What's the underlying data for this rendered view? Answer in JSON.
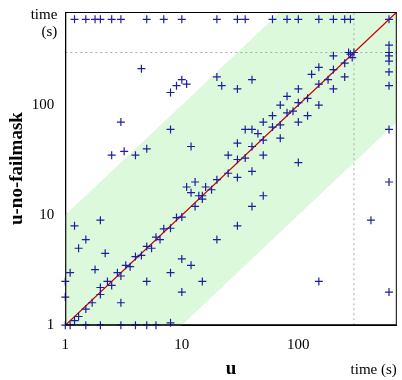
{
  "chart_data": {
    "type": "scatter",
    "x_label": "u",
    "y_label": "u-no-failmask",
    "annotations": [
      {
        "axis": "x",
        "text": "time (s)"
      },
      {
        "axis": "y",
        "text": "time (s)"
      }
    ],
    "log": true,
    "grid": false,
    "marker": "cross",
    "color": "#1f1f9e",
    "diagonal_color": "#cc0000",
    "band_color": "#dcf9dc",
    "band_factor": 10,
    "timeout": 300,
    "xlim": [
      1,
      700
    ],
    "ylim": [
      1,
      700
    ],
    "xticks": [
      1,
      10,
      100
    ],
    "yticks": [
      1,
      10,
      100
    ],
    "x": [
      1,
      1.1,
      1.2,
      1.3,
      1.5,
      1.7,
      2,
      2,
      2.3,
      2.5,
      2.8,
      3,
      3.3,
      3.6,
      4,
      4.5,
      5,
      5.5,
      6,
      6.5,
      7,
      8,
      9,
      10,
      1.5,
      2,
      3,
      4,
      5,
      6,
      8,
      1,
      1,
      1.1,
      1.3,
      1.2,
      1.5,
      2,
      2.2,
      1.8,
      2.5,
      3,
      4,
      3.2,
      8,
      9,
      10,
      11,
      20,
      22,
      30,
      40,
      5,
      8,
      4.5,
      12,
      11,
      12,
      13,
      14,
      15,
      16,
      13,
      3,
      5,
      8,
      10,
      12,
      20,
      30,
      40,
      50,
      100,
      420,
      10,
      15,
      150,
      15,
      18,
      20,
      25,
      30,
      35,
      40,
      50,
      60,
      70,
      80,
      90,
      100,
      120,
      150,
      180,
      200,
      250,
      280,
      300,
      290,
      270,
      30,
      40,
      50,
      60,
      45,
      70,
      80,
      100,
      130,
      150,
      200,
      35,
      25,
      30,
      50,
      70,
      100,
      150,
      200,
      250,
      40,
      120,
      1.2,
      1.5,
      1.8,
      2,
      2.5,
      3,
      5,
      7,
      10,
      20,
      30,
      35,
      60,
      80,
      100,
      150,
      200,
      250,
      280,
      600,
      600,
      600,
      600,
      600,
      600,
      600,
      600,
      600,
      600
    ],
    "values": [
      1,
      1,
      1.1,
      1.2,
      1.4,
      1.6,
      1.9,
      2.2,
      2.5,
      2.3,
      3,
      2.8,
      3.5,
      3.4,
      4.2,
      4.3,
      5.2,
      5,
      6.3,
      6,
      7.5,
      7.6,
      9.5,
      9.6,
      1,
      1,
      1,
      1,
      1,
      1,
      1.05,
      1.8,
      2.5,
      3,
      5,
      8,
      6,
      9,
      4.5,
      3.2,
      35,
      70,
      35,
      38,
      130,
      150,
      170,
      155,
      180,
      150,
      140,
      170,
      40,
      60,
      214,
      42,
      18,
      16,
      20,
      15,
      14,
      18,
      12,
      1.6,
      2.5,
      3,
      4,
      3.5,
      6,
      8,
      12,
      15,
      30,
      9,
      2,
      2.5,
      2.5,
      15,
      17,
      21,
      24,
      32,
      33,
      42,
      48,
      63,
      66,
      85,
      88,
      105,
      115,
      155,
      170,
      210,
      240,
      290,
      300,
      270,
      300,
      45,
      60,
      70,
      80,
      55,
      100,
      120,
      140,
      190,
      220,
      280,
      60,
      35,
      22,
      35,
      50,
      70,
      100,
      140,
      180,
      25,
      80,
      600,
      600,
      600,
      600,
      600,
      600,
      600,
      600,
      600,
      600,
      600,
      600,
      600,
      600,
      600,
      600,
      600,
      600,
      600,
      2,
      20,
      60,
      150,
      200,
      250,
      280,
      300,
      350,
      600
    ]
  }
}
